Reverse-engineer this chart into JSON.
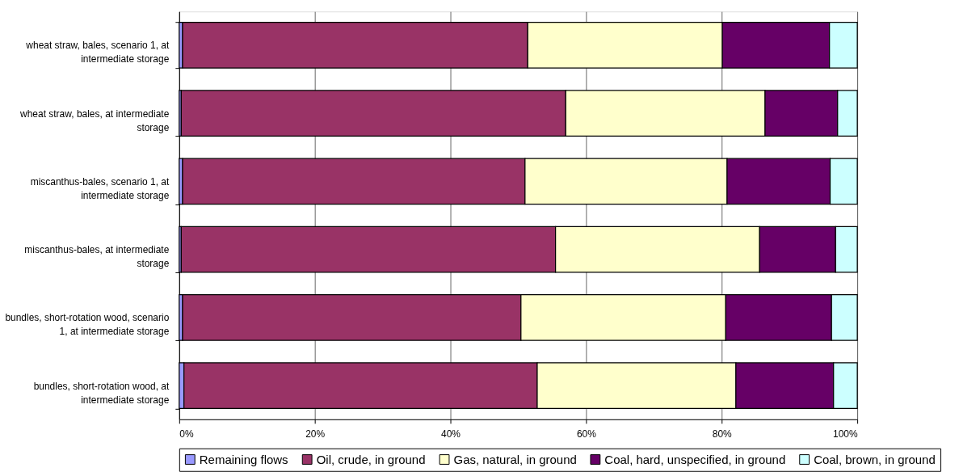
{
  "chart_data": {
    "type": "bar",
    "orientation": "horizontal",
    "stacked": true,
    "categories": [
      "wheat straw, bales, scenario 1, at intermediate storage",
      "wheat straw, bales, at intermediate storage",
      "miscanthus-bales, scenario 1, at intermediate storage",
      "miscanthus-bales, at intermediate storage",
      "bundles, short-rotation wood, scenario 1, at intermediate storage",
      "bundles, short-rotation wood, at intermediate storage"
    ],
    "series": [
      {
        "name": "Remaining flows",
        "color": "#9999ff",
        "values": [
          0.5,
          0.3,
          0.5,
          0.3,
          0.5,
          0.7
        ]
      },
      {
        "name": "Oil, crude, in ground",
        "color": "#993366",
        "values": [
          50.9,
          56.7,
          50.5,
          55.2,
          49.9,
          52.1
        ]
      },
      {
        "name": "Gas, natural, in ground",
        "color": "#ffffcc",
        "values": [
          28.7,
          29.4,
          29.8,
          30.1,
          30.2,
          29.3
        ]
      },
      {
        "name": "Coal, hard, unspecified, in ground",
        "color": "#660066",
        "values": [
          15.8,
          10.7,
          15.2,
          11.2,
          15.6,
          14.4
        ]
      },
      {
        "name": "Coal, brown, in ground",
        "color": "#ccffff",
        "values": [
          4.1,
          2.9,
          4.0,
          3.2,
          3.8,
          3.5
        ]
      }
    ],
    "xlim": [
      0,
      100
    ],
    "xticks": [
      {
        "value": 0,
        "label": "0%"
      },
      {
        "value": 20,
        "label": "20%"
      },
      {
        "value": 40,
        "label": "40%"
      },
      {
        "value": 60,
        "label": "60%"
      },
      {
        "value": 80,
        "label": "80%"
      },
      {
        "value": 100,
        "label": "100%"
      }
    ],
    "grid": "x",
    "legend": "bottom"
  }
}
